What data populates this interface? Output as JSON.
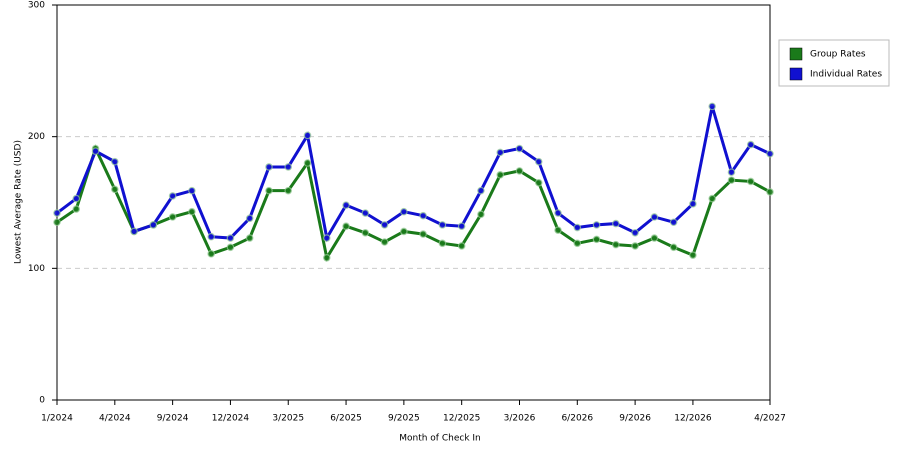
{
  "chart_data": {
    "type": "line",
    "x_label": "Month of Check In",
    "y_label": "Lowest Average Rate (USD)",
    "categories": [
      "1/2024",
      null,
      null,
      "4/2024",
      null,
      null,
      "9/2024",
      null,
      null,
      "12/2024",
      null,
      null,
      "3/2025",
      null,
      null,
      "6/2025",
      null,
      null,
      "9/2025",
      null,
      null,
      "12/2025",
      null,
      null,
      "3/2026",
      null,
      null,
      "6/2026",
      null,
      null,
      "9/2026",
      null,
      null,
      "12/2026",
      null,
      null,
      null,
      "4/2027"
    ],
    "series": [
      {
        "name": "Group Rates",
        "color": "#1a7a1a",
        "values": [
          135,
          145,
          191,
          160,
          128,
          133,
          139,
          143,
          111,
          116,
          123,
          159,
          159,
          180,
          108,
          132,
          127,
          120,
          128,
          126,
          119,
          117,
          141,
          171,
          174,
          165,
          129,
          119,
          122,
          118,
          117,
          123,
          116,
          110,
          153,
          167,
          166,
          158
        ]
      },
      {
        "name": "Individual Rates",
        "color": "#1010d0",
        "values": [
          142,
          153,
          189,
          181,
          128,
          133,
          155,
          159,
          124,
          123,
          138,
          177,
          177,
          201,
          123,
          148,
          142,
          133,
          143,
          140,
          133,
          132,
          159,
          188,
          191,
          181,
          142,
          131,
          133,
          134,
          127,
          139,
          135,
          149,
          223,
          173,
          194,
          187
        ]
      }
    ],
    "ylim": [
      0,
      300
    ],
    "yticks": [
      0,
      100,
      200,
      300
    ],
    "grid": true,
    "legend": "right"
  }
}
